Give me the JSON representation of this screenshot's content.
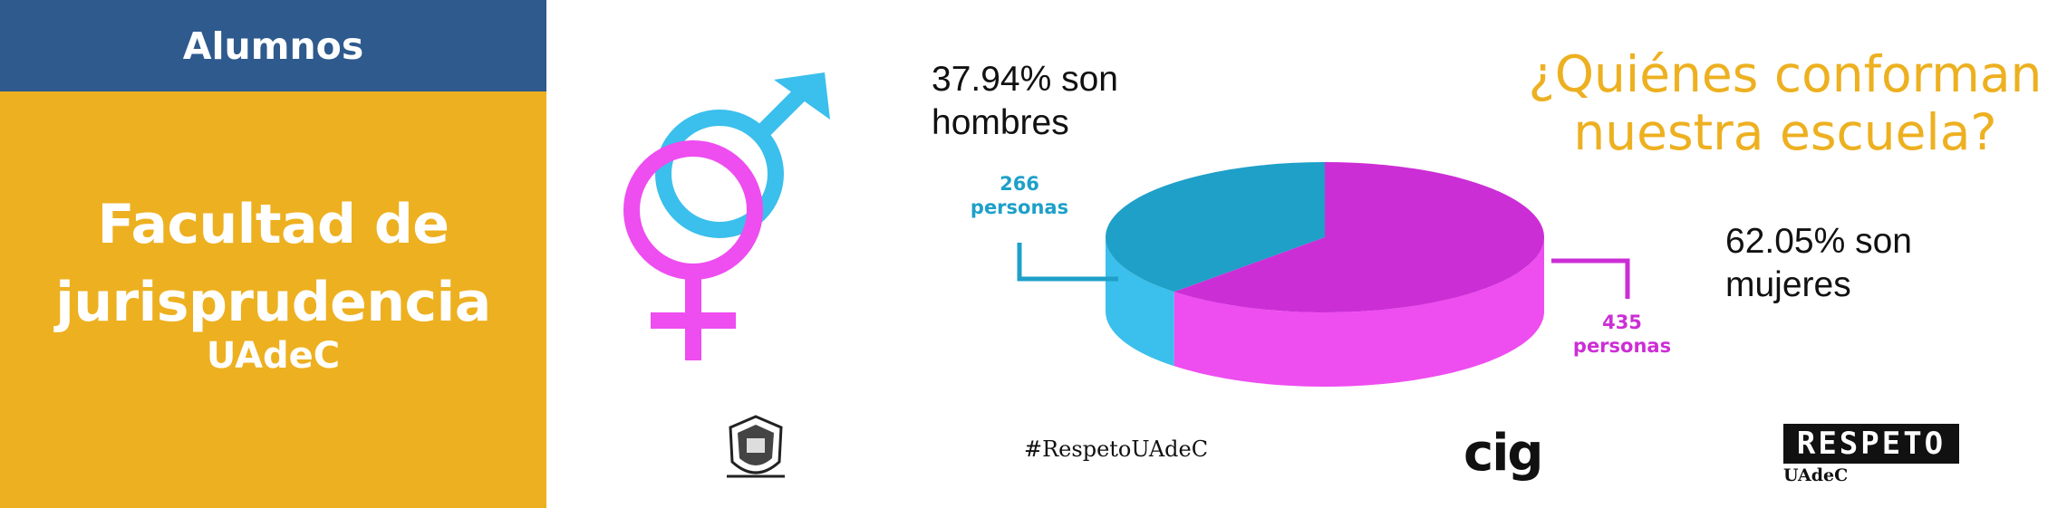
{
  "left": {
    "header": "Alumnos",
    "title_line1": "Facultad de",
    "title_line2": "jurisprudencia",
    "subtitle": "UAdeC"
  },
  "stats": {
    "men_line1": "37.94% son",
    "men_line2": "hombres",
    "women_line1": "62.05% son",
    "women_line2": "mujeres"
  },
  "heading": {
    "line1": "¿Quiénes conforman",
    "line2": "nuestra escuela?"
  },
  "footer": {
    "hashtag": "#RespetoUAdeC",
    "cig": "cig",
    "respeto": "RESPETO",
    "respeto_sub": "UAdeC"
  },
  "chart_data": {
    "type": "pie",
    "title": "¿Quiénes conforman nuestra escuela?",
    "series": [
      {
        "value": 266,
        "label_line1": "266",
        "label_line2": "personas",
        "percent": 37.94,
        "color": "#1EA0C8",
        "side_color": "#3BBFEC"
      },
      {
        "value": 435,
        "label_line1": "435",
        "label_line2": "personas",
        "percent": 62.05,
        "color": "#CC2ED6",
        "side_color": "#EE4DF0"
      }
    ]
  },
  "colors": {
    "accent_yellow": "#EDB020",
    "header_blue": "#2E5A8E",
    "male_blue": "#3BBFEC",
    "female_pink": "#EE4DF0"
  }
}
